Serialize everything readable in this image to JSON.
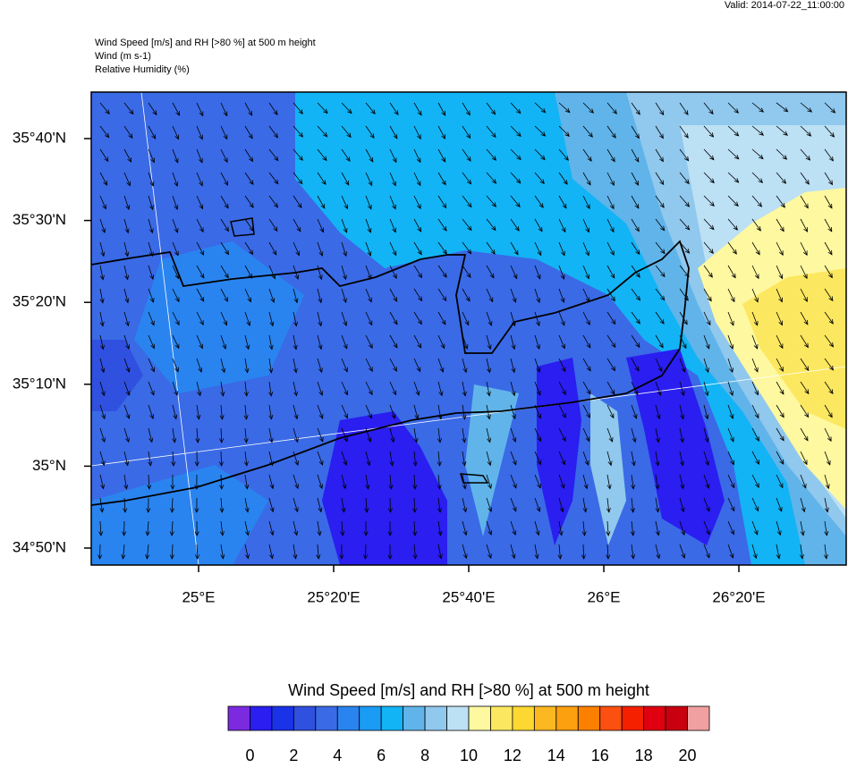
{
  "header": {
    "valid": "Valid: 2014-07-22_11:00:00",
    "lines": [
      "Wind Speed [m/s] and RH [>80 %] at 500 m height",
      "Wind   (m s-1)",
      "Relative Humidity   (%)"
    ]
  },
  "map": {
    "lat_labels": [
      "35°40'N",
      "35°30'N",
      "35°20'N",
      "35°10'N",
      "35°N",
      "34°50'N"
    ],
    "lon_labels": [
      "25°E",
      "25°20'E",
      "25°40'E",
      "26°E",
      "26°20'E"
    ]
  },
  "colorbar": {
    "title": "Wind Speed [m/s] and RH [>80 %] at 500 m height",
    "range": [
      -1,
      21
    ],
    "colors": [
      "#7b2ae0",
      "#2a1ef0",
      "#1a32e8",
      "#3050e0",
      "#3a6ae6",
      "#2a84f0",
      "#1a9cf5",
      "#12b4f5",
      "#60b4ea",
      "#90c8ee",
      "#bce0f4",
      "#fef8a0",
      "#fce860",
      "#fcd830",
      "#fcb820",
      "#fca010",
      "#fc8000",
      "#fc5010",
      "#f42000",
      "#e00010",
      "#c80010",
      "#f0a0a0"
    ],
    "ticks": [
      0,
      2,
      4,
      6,
      8,
      10,
      12,
      14,
      16,
      18,
      20
    ]
  }
}
